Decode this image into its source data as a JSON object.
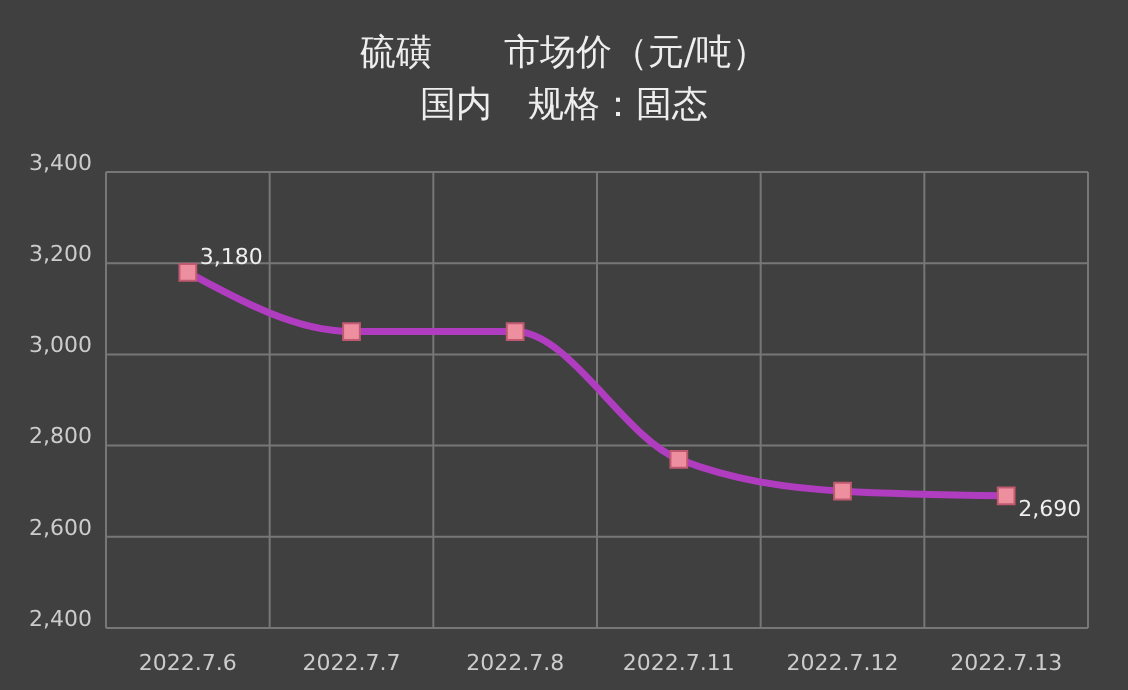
{
  "chart_data": {
    "type": "line",
    "title": "硫磺　　市场价（元/吨）",
    "subtitle": "国内　规格：固态",
    "categories": [
      "2022.7.6",
      "2022.7.7",
      "2022.7.8",
      "2022.7.11",
      "2022.7.12",
      "2022.7.13"
    ],
    "series": [
      {
        "color": "#b03cc0",
        "values": [
          3180,
          3050,
          3050,
          2770,
          2700,
          2690
        ],
        "value_labels": [
          "3,180",
          null,
          null,
          null,
          null,
          "2,690"
        ]
      }
    ],
    "ylim": [
      2400,
      3400
    ],
    "yticks": [
      {
        "value": 2400,
        "label": "2,400"
      },
      {
        "value": 2600,
        "label": "2,600"
      },
      {
        "value": 2800,
        "label": "2,800"
      },
      {
        "value": 3000,
        "label": "3,000"
      },
      {
        "value": 3200,
        "label": "3,200"
      },
      {
        "value": 3400,
        "label": "3,400"
      }
    ],
    "grid": true,
    "marker": "square"
  }
}
